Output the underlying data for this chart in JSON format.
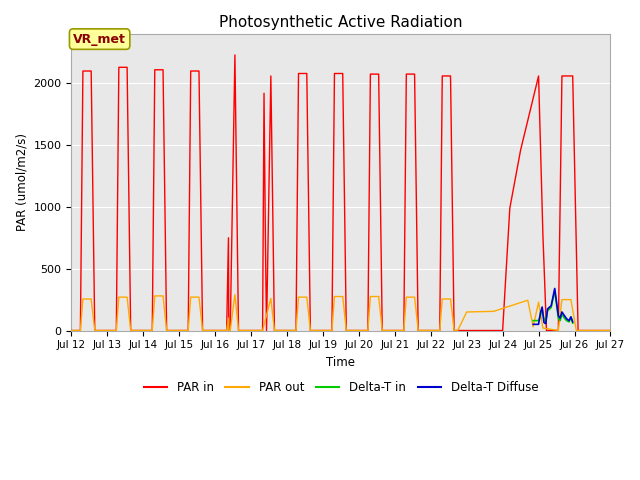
{
  "title": "Photosynthetic Active Radiation",
  "ylabel": "PAR (umol/m2/s)",
  "xlabel": "Time",
  "ylim": [
    0,
    2400
  ],
  "annotation_text": "VR_met",
  "legend_colors": [
    "#ff0000",
    "#ffaa00",
    "#00cc00",
    "#0000cc"
  ],
  "background_color": "#e8e8e8",
  "xtick_labels": [
    "Jul 12",
    "Jul 13",
    "Jul 14",
    "Jul 15",
    "Jul 16",
    "Jul 17",
    "Jul 18",
    "Jul 19",
    "Jul 20",
    "Jul 21",
    "Jul 22",
    "Jul 23",
    "Jul 24",
    "Jul 25",
    "Jul 26",
    "Jul 27"
  ],
  "par_in_x": [
    12.0,
    12.25,
    12.32,
    12.55,
    12.65,
    12.75,
    13.25,
    13.32,
    13.55,
    13.65,
    13.75,
    14.25,
    14.32,
    14.55,
    14.65,
    14.75,
    15.25,
    15.32,
    15.55,
    15.65,
    15.75,
    16.25,
    16.32,
    16.37,
    16.38,
    16.42,
    16.55,
    16.65,
    16.75,
    17.25,
    17.32,
    17.36,
    17.4,
    17.43,
    17.55,
    17.65,
    17.75,
    18.25,
    18.32,
    18.55,
    18.65,
    18.75,
    19.25,
    19.32,
    19.55,
    19.65,
    19.75,
    20.25,
    20.32,
    20.55,
    20.65,
    20.75,
    21.25,
    21.32,
    21.55,
    21.65,
    21.75,
    22.25,
    22.32,
    22.55,
    22.65,
    22.75,
    23.0,
    23.5,
    24.0,
    24.2,
    24.5,
    25.0,
    25.12,
    25.22,
    25.55,
    25.65,
    25.95,
    26.1,
    26.25,
    27.0
  ],
  "par_in_y": [
    0,
    0,
    2100,
    2100,
    0,
    0,
    0,
    2130,
    2130,
    0,
    0,
    0,
    2110,
    2110,
    0,
    0,
    0,
    2100,
    2100,
    0,
    0,
    0,
    0,
    750,
    0,
    0,
    2230,
    0,
    0,
    0,
    0,
    1920,
    700,
    0,
    2060,
    0,
    0,
    0,
    2080,
    2080,
    0,
    0,
    0,
    2080,
    2080,
    0,
    0,
    0,
    2075,
    2075,
    0,
    0,
    0,
    2075,
    2075,
    0,
    0,
    0,
    2060,
    2060,
    0,
    0,
    0,
    0,
    0,
    990,
    1460,
    2060,
    780,
    0,
    0,
    2060,
    2060,
    0,
    0,
    0
  ],
  "par_out_x": [
    12.0,
    12.25,
    12.32,
    12.55,
    12.65,
    12.75,
    13.25,
    13.32,
    13.55,
    13.65,
    13.75,
    14.25,
    14.32,
    14.55,
    14.65,
    14.75,
    15.25,
    15.32,
    15.55,
    15.65,
    15.75,
    16.25,
    16.32,
    16.37,
    16.38,
    16.42,
    16.55,
    16.65,
    16.75,
    17.25,
    17.32,
    17.55,
    17.65,
    17.75,
    18.25,
    18.32,
    18.55,
    18.65,
    18.75,
    19.25,
    19.32,
    19.55,
    19.65,
    19.75,
    20.25,
    20.32,
    20.55,
    20.65,
    20.75,
    21.25,
    21.32,
    21.55,
    21.65,
    21.75,
    22.25,
    22.32,
    22.55,
    22.65,
    22.75,
    23.0,
    23.75,
    24.7,
    24.85,
    25.0,
    25.12,
    25.55,
    25.65,
    25.9,
    26.05,
    26.2,
    27.0
  ],
  "par_out_y": [
    0,
    0,
    255,
    255,
    0,
    0,
    0,
    270,
    270,
    0,
    0,
    0,
    280,
    280,
    0,
    0,
    0,
    270,
    270,
    0,
    0,
    0,
    0,
    100,
    0,
    0,
    290,
    0,
    0,
    0,
    0,
    260,
    0,
    0,
    0,
    270,
    270,
    0,
    0,
    0,
    275,
    275,
    0,
    0,
    0,
    275,
    275,
    0,
    0,
    0,
    270,
    270,
    0,
    0,
    0,
    255,
    255,
    0,
    0,
    150,
    155,
    245,
    30,
    230,
    20,
    0,
    250,
    250,
    0,
    0,
    0
  ],
  "delta_t_in_x": [
    24.85,
    25.0,
    25.05,
    25.1,
    25.15,
    25.2,
    25.25,
    25.35,
    25.45,
    25.55,
    25.6,
    25.65,
    25.72,
    25.78,
    25.85,
    25.9,
    25.95
  ],
  "delta_t_in_y": [
    80,
    80,
    120,
    170,
    90,
    75,
    160,
    185,
    320,
    100,
    80,
    130,
    100,
    80,
    70,
    110,
    60
  ],
  "delta_t_diff_x": [
    24.85,
    25.0,
    25.05,
    25.1,
    25.15,
    25.2,
    25.25,
    25.35,
    25.45,
    25.55,
    25.6,
    25.65,
    25.72,
    25.78,
    25.85,
    25.9,
    25.95
  ],
  "delta_t_diff_y": [
    50,
    50,
    140,
    190,
    65,
    55,
    175,
    200,
    340,
    120,
    100,
    150,
    120,
    95,
    80,
    110,
    70
  ]
}
